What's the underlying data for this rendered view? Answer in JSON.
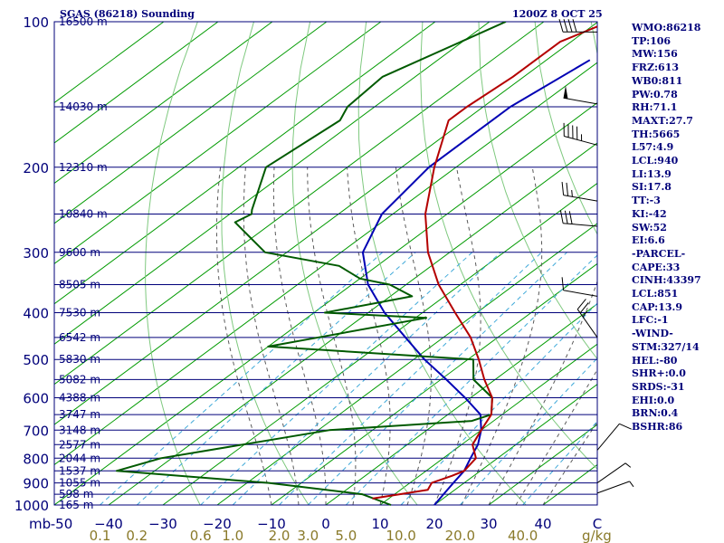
{
  "header": {
    "title": "SGAS (86218) Sounding",
    "time": "1200Z  8 OCT 25"
  },
  "indices": [
    "WMO:86218",
    "TP:106",
    "MW:156",
    "FRZ:613",
    "WB0:811",
    "PW:0.78",
    "RH:71.1",
    "MAXT:27.7",
    "TH:5665",
    "L57:4.9",
    "LCL:940",
    "LI:13.9",
    "SI:17.8",
    "TT:-3",
    "KI:-42",
    "SW:52",
    "EI:6.6",
    "-PARCEL-",
    "CAPE:33",
    "CINH:43397",
    "LCL:851",
    "CAP:13.9",
    "LFC:-1",
    "-WIND-",
    "STM:327/14",
    "HEL:-80",
    "SHR+:0.0",
    "SRDS:-31",
    "EHI:0.0",
    "BRN:0.4",
    "BSHR:86"
  ],
  "colors": {
    "isobar": "#00007a",
    "isotherm": "#009a00",
    "dry_adiabat": "#7fc97f",
    "moist_adiabat": "#5a5a5a",
    "mixing_ratio": "#3fa9d9",
    "temperature": "#b40000",
    "dewpoint": "#005a00",
    "parcel": "#0000b4",
    "text": "#00007a",
    "mr_labels": "#8a7a2a"
  },
  "chart_data": {
    "type": "skew-t",
    "pressure_levels": [
      100,
      200,
      300,
      400,
      500,
      600,
      700,
      800,
      900,
      1000
    ],
    "pressure_labels": [
      "100",
      "200",
      "300",
      "400",
      "500",
      "600",
      "700",
      "800",
      "900",
      "1000"
    ],
    "plim": [
      100,
      1000
    ],
    "temperature_ticks": [
      -50,
      -40,
      -30,
      -20,
      -10,
      0,
      10,
      20,
      30,
      40,
      50
    ],
    "temperature_tick_labels": [
      "-50",
      "−40",
      "−30",
      "−20",
      "−10",
      "0",
      "10",
      "20",
      "30",
      "40",
      "C"
    ],
    "bottom_left_label": "mb",
    "height_levels": [
      {
        "p": 100,
        "label": "16500 m"
      },
      {
        "p": 150,
        "label": "14030 m"
      },
      {
        "p": 200,
        "label": "12310 m"
      },
      {
        "p": 250,
        "label": "10840 m"
      },
      {
        "p": 300,
        "label": "9600 m"
      },
      {
        "p": 350,
        "label": "8505 m"
      },
      {
        "p": 400,
        "label": "7530 m"
      },
      {
        "p": 450,
        "label": "6542 m"
      },
      {
        "p": 500,
        "label": "5830 m"
      },
      {
        "p": 550,
        "label": "5082 m"
      },
      {
        "p": 600,
        "label": "4388 m"
      },
      {
        "p": 650,
        "label": "3747 m"
      },
      {
        "p": 700,
        "label": "3148 m"
      },
      {
        "p": 750,
        "label": "2577 m"
      },
      {
        "p": 800,
        "label": "2044 m"
      },
      {
        "p": 850,
        "label": "1537 m"
      },
      {
        "p": 900,
        "label": "1055 m"
      },
      {
        "p": 950,
        "label": "598 m"
      },
      {
        "p": 1000,
        "label": "165 m"
      }
    ],
    "mixing_ratio_labels": [
      "0.1",
      "0.2",
      "0.6",
      "1.0",
      "2.0",
      "3.0",
      "5.0",
      "10.0",
      "20.0",
      "40.0"
    ],
    "mixing_ratio_unit": "g/kg",
    "temperature": [
      {
        "p": 100,
        "t": -68
      },
      {
        "p": 110,
        "t": -72
      },
      {
        "p": 130,
        "t": -72
      },
      {
        "p": 150,
        "t": -73
      },
      {
        "p": 160,
        "t": -73
      },
      {
        "p": 200,
        "t": -64
      },
      {
        "p": 250,
        "t": -54
      },
      {
        "p": 300,
        "t": -44
      },
      {
        "p": 350,
        "t": -34
      },
      {
        "p": 400,
        "t": -24
      },
      {
        "p": 450,
        "t": -15
      },
      {
        "p": 500,
        "t": -8
      },
      {
        "p": 550,
        "t": -2
      },
      {
        "p": 600,
        "t": 4
      },
      {
        "p": 650,
        "t": 8
      },
      {
        "p": 700,
        "t": 10
      },
      {
        "p": 750,
        "t": 12
      },
      {
        "p": 800,
        "t": 16
      },
      {
        "p": 850,
        "t": 17
      },
      {
        "p": 870,
        "t": 16
      },
      {
        "p": 900,
        "t": 14
      },
      {
        "p": 930,
        "t": 15
      },
      {
        "p": 960,
        "t": 9
      },
      {
        "p": 970,
        "t": 7
      }
    ],
    "dewpoint": [
      {
        "p": 100,
        "t": -87
      },
      {
        "p": 130,
        "t": -96
      },
      {
        "p": 150,
        "t": -95
      },
      {
        "p": 160,
        "t": -93
      },
      {
        "p": 200,
        "t": -95
      },
      {
        "p": 245,
        "t": -87
      },
      {
        "p": 250,
        "t": -86
      },
      {
        "p": 260,
        "t": -87
      },
      {
        "p": 300,
        "t": -74
      },
      {
        "p": 320,
        "t": -57
      },
      {
        "p": 340,
        "t": -50
      },
      {
        "p": 350,
        "t": -43
      },
      {
        "p": 370,
        "t": -36
      },
      {
        "p": 400,
        "t": -48
      },
      {
        "p": 410,
        "t": -28
      },
      {
        "p": 450,
        "t": -43
      },
      {
        "p": 470,
        "t": -50
      },
      {
        "p": 500,
        "t": -9
      },
      {
        "p": 550,
        "t": -4
      },
      {
        "p": 600,
        "t": 4
      },
      {
        "p": 650,
        "t": 8
      },
      {
        "p": 670,
        "t": 6
      },
      {
        "p": 700,
        "t": -18
      },
      {
        "p": 800,
        "t": -42
      },
      {
        "p": 850,
        "t": -47
      },
      {
        "p": 900,
        "t": -16
      },
      {
        "p": 950,
        "t": 4
      },
      {
        "p": 1000,
        "t": 12
      }
    ],
    "parcel": [
      {
        "p": 120,
        "t": -62
      },
      {
        "p": 150,
        "t": -65
      },
      {
        "p": 200,
        "t": -65
      },
      {
        "p": 250,
        "t": -62
      },
      {
        "p": 300,
        "t": -56
      },
      {
        "p": 350,
        "t": -47
      },
      {
        "p": 400,
        "t": -37
      },
      {
        "p": 450,
        "t": -27
      },
      {
        "p": 500,
        "t": -18
      },
      {
        "p": 550,
        "t": -9
      },
      {
        "p": 600,
        "t": -1
      },
      {
        "p": 650,
        "t": 6
      },
      {
        "p": 700,
        "t": 10
      },
      {
        "p": 750,
        "t": 13
      },
      {
        "p": 800,
        "t": 15
      },
      {
        "p": 850,
        "t": 17
      },
      {
        "p": 900,
        "t": 18
      },
      {
        "p": 950,
        "t": 19
      },
      {
        "p": 1000,
        "t": 20
      }
    ],
    "wind": [
      {
        "p": 105,
        "dir": 270,
        "spd": 40
      },
      {
        "p": 148,
        "dir": 280,
        "spd": 50
      },
      {
        "p": 180,
        "dir": 285,
        "spd": 45
      },
      {
        "p": 235,
        "dir": 280,
        "spd": 25
      },
      {
        "p": 265,
        "dir": 275,
        "spd": 30
      },
      {
        "p": 370,
        "dir": 280,
        "spd": 10
      },
      {
        "p": 450,
        "dir": 325,
        "spd": 25
      },
      {
        "p": 770,
        "dir": 40,
        "spd": 10
      },
      {
        "p": 900,
        "dir": 55,
        "spd": 5
      },
      {
        "p": 945,
        "dir": 70,
        "spd": 5
      }
    ]
  }
}
